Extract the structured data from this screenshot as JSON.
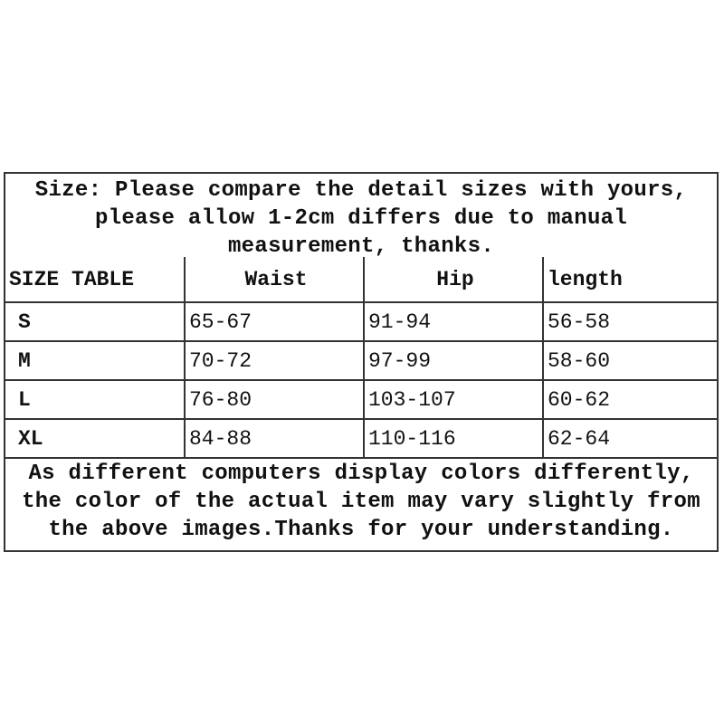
{
  "intro_lines": [
    "Size: Please compare the detail sizes with yours,",
    "please allow 1-2cm differs due to manual",
    "measurement, thanks."
  ],
  "table": {
    "headers": [
      "SIZE TABLE",
      "Waist",
      "Hip",
      "length"
    ],
    "rows": [
      {
        "size": "S",
        "waist": "65-67",
        "hip": "91-94",
        "length": "56-58"
      },
      {
        "size": "M",
        "waist": "70-72",
        "hip": "97-99",
        "length": "58-60"
      },
      {
        "size": "L",
        "waist": "76-80",
        "hip": "103-107",
        "length": "60-62"
      },
      {
        "size": "XL",
        "waist": "84-88",
        "hip": "110-116",
        "length": "62-64"
      }
    ]
  },
  "disclaimer_lines": [
    "As different computers display colors differently,",
    "the color of the actual item may vary slightly from",
    "the above images.Thanks for your understanding."
  ]
}
